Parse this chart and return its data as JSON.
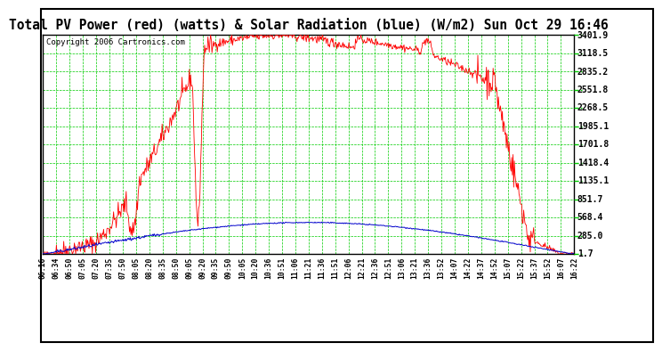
{
  "title": "Total PV Power (red) (watts) & Solar Radiation (blue) (W/m2) Sun Oct 29 16:46",
  "copyright": "Copyright 2006 Cartronics.com",
  "bg_color": "#ffffff",
  "plot_bg_color": "#ffffff",
  "grid_color": "#00cc00",
  "x_labels": [
    "06:16",
    "06:34",
    "06:50",
    "07:05",
    "07:20",
    "07:35",
    "07:50",
    "08:05",
    "08:20",
    "08:35",
    "08:50",
    "09:05",
    "09:20",
    "09:35",
    "09:50",
    "10:05",
    "10:20",
    "10:36",
    "10:51",
    "11:06",
    "11:21",
    "11:36",
    "11:51",
    "12:06",
    "12:21",
    "12:36",
    "12:51",
    "13:06",
    "13:21",
    "13:36",
    "13:52",
    "14:07",
    "14:22",
    "14:37",
    "14:52",
    "15:07",
    "15:22",
    "15:37",
    "15:52",
    "16:07",
    "16:22"
  ],
  "y_ticks": [
    1.7,
    285.0,
    568.4,
    851.7,
    1135.1,
    1418.4,
    1701.8,
    1985.1,
    2268.5,
    2551.8,
    2835.2,
    3118.5,
    3401.9
  ],
  "y_min": 1.7,
  "y_max": 3401.9,
  "red_line_color": "#ff0000",
  "blue_line_color": "#0000cc",
  "title_fontsize": 10.5,
  "tick_fontsize": 7,
  "copyright_fontsize": 6.5
}
